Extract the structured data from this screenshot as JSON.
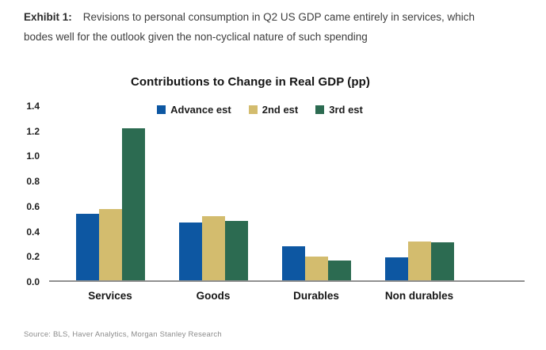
{
  "header": {
    "exhibit_label": "Exhibit 1:",
    "description": "Revisions to personal consumption in Q2 US GDP came entirely in services, which bodes well for the outlook given the non-cyclical nature of such spending"
  },
  "chart_data": {
    "type": "bar",
    "title": "Contributions to Change in Real GDP (pp)",
    "categories": [
      "Services",
      "Goods",
      "Durables",
      "Non durables"
    ],
    "series": [
      {
        "name": "Advance est",
        "color": "#0d57a2",
        "values": [
          0.53,
          0.46,
          0.27,
          0.18
        ]
      },
      {
        "name": "2nd est",
        "color": "#d3bc6e",
        "values": [
          0.57,
          0.51,
          0.19,
          0.31
        ]
      },
      {
        "name": "3rd est",
        "color": "#2c6b51",
        "values": [
          1.21,
          0.47,
          0.16,
          0.3
        ]
      }
    ],
    "xlabel": "",
    "ylabel": "",
    "ylim": [
      0,
      1.4
    ],
    "ytick_labels": [
      "0.0",
      "0.2",
      "0.4",
      "0.6",
      "0.8",
      "1.0",
      "1.2",
      "1.4"
    ],
    "grid": false,
    "legend_position": "top-center",
    "axis_color": "#909090"
  },
  "source": "Source: BLS, Haver Analytics, Morgan Stanley Research"
}
